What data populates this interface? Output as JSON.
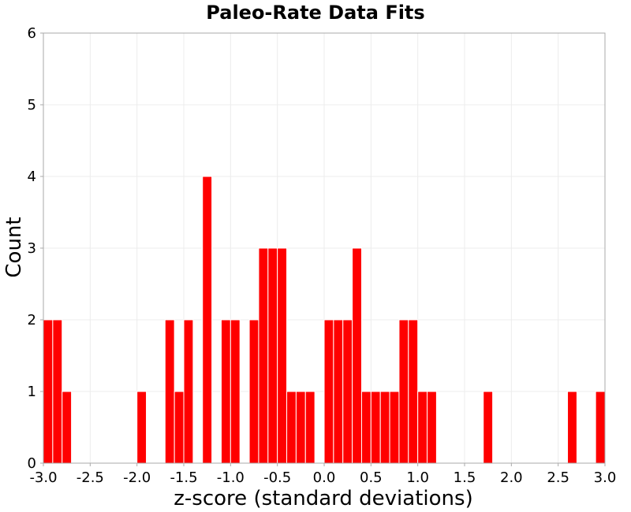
{
  "chart_data": {
    "type": "bar",
    "title": "Paleo-Rate Data Fits",
    "xlabel": "z-score (standard deviations)",
    "ylabel": "Count",
    "xlim": [
      -3.0,
      3.0
    ],
    "ylim": [
      0,
      6
    ],
    "bin_width": 0.1,
    "grid": true,
    "legend": "none",
    "x_ticks": [
      "-3.0",
      "-2.5",
      "-2.0",
      "-1.5",
      "-1.0",
      "-0.5",
      "0.0",
      "0.5",
      "1.0",
      "1.5",
      "2.0",
      "2.5",
      "3.0"
    ],
    "y_ticks": [
      "0",
      "1",
      "2",
      "3",
      "4",
      "5",
      "6"
    ],
    "bins": [
      {
        "start": -3.0,
        "count": 2
      },
      {
        "start": -2.9,
        "count": 2
      },
      {
        "start": -2.8,
        "count": 1
      },
      {
        "start": -2.0,
        "count": 1
      },
      {
        "start": -1.7,
        "count": 2
      },
      {
        "start": -1.6,
        "count": 1
      },
      {
        "start": -1.5,
        "count": 2
      },
      {
        "start": -1.3,
        "count": 4
      },
      {
        "start": -1.1,
        "count": 2
      },
      {
        "start": -1.0,
        "count": 2
      },
      {
        "start": -0.8,
        "count": 2
      },
      {
        "start": -0.7,
        "count": 3
      },
      {
        "start": -0.6,
        "count": 3
      },
      {
        "start": -0.5,
        "count": 3
      },
      {
        "start": -0.4,
        "count": 1
      },
      {
        "start": -0.3,
        "count": 1
      },
      {
        "start": -0.2,
        "count": 1
      },
      {
        "start": 0.0,
        "count": 2
      },
      {
        "start": 0.1,
        "count": 2
      },
      {
        "start": 0.2,
        "count": 2
      },
      {
        "start": 0.3,
        "count": 3
      },
      {
        "start": 0.4,
        "count": 1
      },
      {
        "start": 0.5,
        "count": 1
      },
      {
        "start": 0.6,
        "count": 1
      },
      {
        "start": 0.7,
        "count": 1
      },
      {
        "start": 0.8,
        "count": 2
      },
      {
        "start": 0.9,
        "count": 2
      },
      {
        "start": 1.0,
        "count": 1
      },
      {
        "start": 1.1,
        "count": 1
      },
      {
        "start": 1.7,
        "count": 1
      },
      {
        "start": 2.6,
        "count": 1
      },
      {
        "start": 2.9,
        "count": 1
      }
    ],
    "colors": {
      "bar": "#ff0000",
      "bar_edge": "#ffffff",
      "grid": "#ececec",
      "frame": "#aaaaaa",
      "text": "#000000"
    }
  }
}
